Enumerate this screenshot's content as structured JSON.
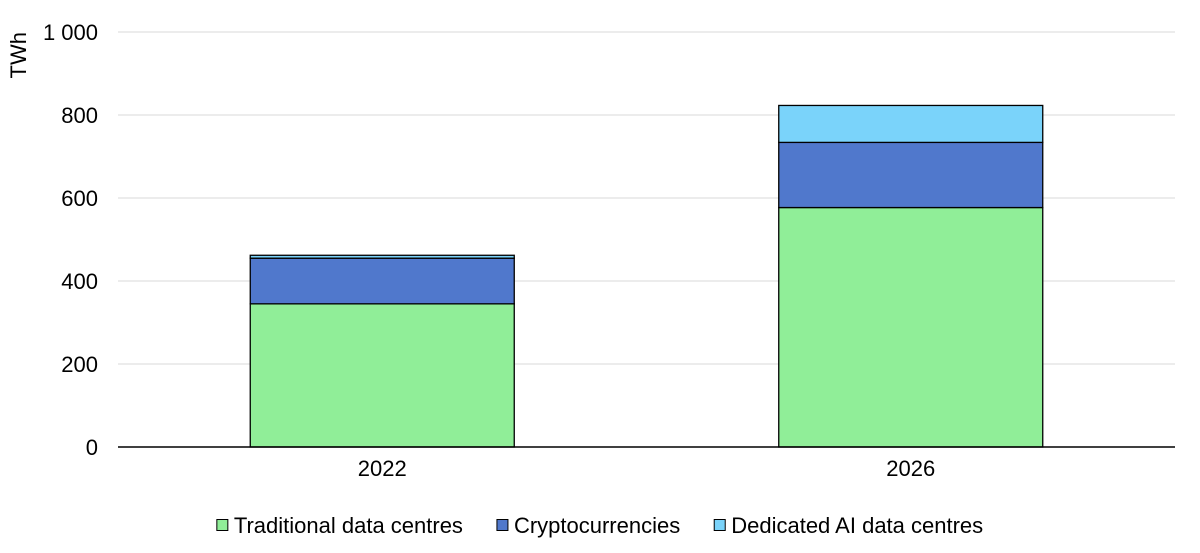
{
  "chart_data": {
    "type": "bar",
    "stacked": true,
    "categories": [
      "2022",
      "2026"
    ],
    "series": [
      {
        "name": "Traditional data centres",
        "values": [
          345,
          577
        ],
        "color": "#90EE98"
      },
      {
        "name": "Cryptocurrencies",
        "values": [
          110,
          157
        ],
        "color": "#5078CC"
      },
      {
        "name": "Dedicated AI data centres",
        "values": [
          7,
          89
        ],
        "color": "#7AD3FA"
      }
    ],
    "ylabel": "TWh",
    "ylim": [
      0,
      1000
    ],
    "yticks": [
      0,
      200,
      400,
      600,
      800,
      1000
    ],
    "ytick_labels": [
      "0",
      "200",
      "400",
      "600",
      "800",
      "1 000"
    ],
    "grid": true,
    "legend_position": "bottom"
  }
}
